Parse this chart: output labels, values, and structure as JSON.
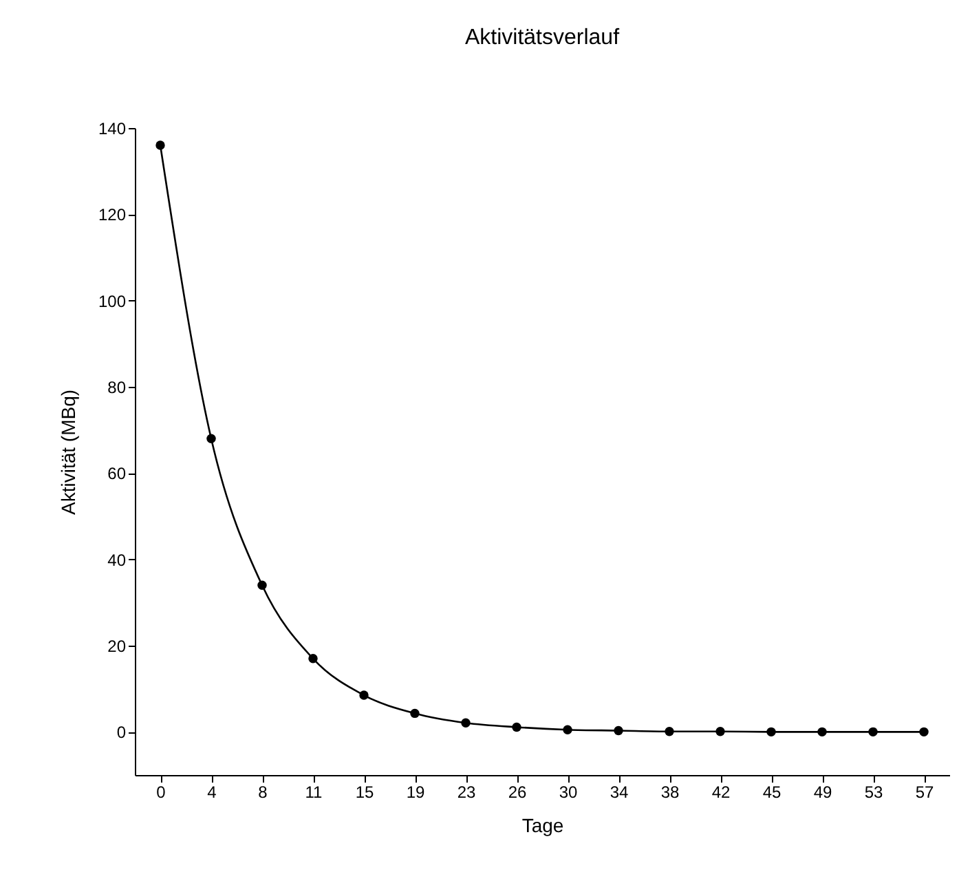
{
  "chart_data": {
    "type": "line",
    "title": "Aktivitätsverlauf",
    "xlabel": "Tage",
    "ylabel": "Aktivität (MBq)",
    "categories": [
      "0",
      "4",
      "8",
      "11",
      "15",
      "19",
      "23",
      "26",
      "30",
      "34",
      "38",
      "42",
      "45",
      "49",
      "53",
      "57"
    ],
    "series": [
      {
        "color": "#000000",
        "values": [
          136,
          68,
          34,
          17,
          8.5,
          4.3,
          2.1,
          1.1,
          0.5,
          0.3,
          0.1,
          0.1,
          0,
          0,
          0,
          0
        ]
      }
    ],
    "ylim": [
      -10,
      140
    ],
    "yticks": [
      0,
      20,
      40,
      60,
      80,
      100,
      120,
      140
    ],
    "grid": false,
    "legend": false,
    "marker": "circle",
    "line_style": "solid"
  }
}
